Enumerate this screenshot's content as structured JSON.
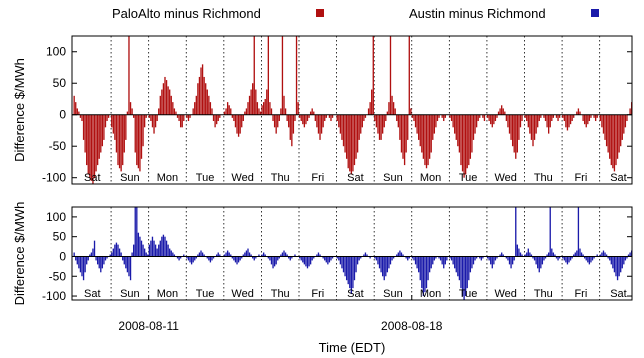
{
  "chart_data": [
    {
      "type": "bar",
      "panel": "top",
      "ylabel": "Difference $/MWh",
      "ylim": [
        -110,
        125
      ],
      "yticks": [
        -100,
        -50,
        0,
        50,
        100
      ],
      "grid": "vertical dotted lines at day boundaries",
      "day_labels": [
        "Sat",
        "Sun",
        "Mon",
        "Tue",
        "Wed",
        "Thu",
        "Fri",
        "Sat",
        "Sun",
        "Mon",
        "Tue",
        "Wed",
        "Thu",
        "Fri",
        "Sat"
      ],
      "series": [
        {
          "name": "PaloAlto minus Richmond",
          "color": "#b01010",
          "hours_per_point": 1,
          "profile_note": "hourly differences, days Sat..Sat",
          "daily_profiles": [
            [
              30,
              20,
              10,
              5,
              -5,
              -10,
              -40,
              -60,
              -80,
              -95,
              -100,
              -105,
              -110,
              -100,
              -90,
              -80,
              -70,
              -60,
              -50,
              -40,
              -20,
              -10,
              -5,
              0
            ],
            [
              -20,
              -30,
              -40,
              -60,
              -80,
              -85,
              -90,
              -80,
              -60,
              -40,
              5,
              125,
              20,
              10,
              -5,
              -60,
              -80,
              -85,
              -90,
              -70,
              -50,
              -20,
              -5,
              0
            ],
            [
              -5,
              -10,
              -20,
              -30,
              -20,
              -10,
              10,
              30,
              40,
              50,
              60,
              55,
              45,
              40,
              30,
              20,
              10,
              5,
              -5,
              -10,
              -20,
              -20,
              -10,
              0
            ],
            [
              -5,
              -10,
              -5,
              0,
              10,
              20,
              30,
              50,
              60,
              75,
              80,
              60,
              50,
              40,
              30,
              20,
              10,
              -10,
              -20,
              -15,
              -10,
              -5,
              0,
              0
            ],
            [
              5,
              10,
              20,
              15,
              10,
              -5,
              -10,
              -20,
              -30,
              -35,
              -30,
              -20,
              -10,
              5,
              10,
              20,
              30,
              40,
              50,
              125,
              40,
              20,
              10,
              5
            ],
            [
              15,
              20,
              25,
              40,
              125,
              20,
              10,
              -10,
              -20,
              -30,
              -20,
              -10,
              10,
              125,
              30,
              10,
              -10,
              -20,
              -40,
              -50,
              -30,
              -10,
              125,
              20
            ],
            [
              -5,
              -10,
              -15,
              -20,
              -15,
              -10,
              -5,
              5,
              10,
              5,
              -10,
              -20,
              -30,
              -40,
              -30,
              -20,
              -10,
              -5,
              0,
              -5,
              -10,
              -5,
              0,
              0
            ],
            [
              -10,
              -20,
              -30,
              -40,
              -50,
              -60,
              -70,
              -85,
              -90,
              -95,
              -90,
              -80,
              -70,
              -60,
              -40,
              -30,
              -20,
              -10,
              -5,
              0,
              10,
              20,
              40,
              125
            ],
            [
              -10,
              -20,
              -30,
              -40,
              -40,
              -30,
              -20,
              -10,
              5,
              20,
              125,
              30,
              20,
              10,
              -10,
              -20,
              -40,
              -60,
              -70,
              -80,
              -60,
              -40,
              125,
              10
            ],
            [
              -5,
              -10,
              -20,
              -30,
              -40,
              -50,
              -60,
              -70,
              -80,
              -85,
              -80,
              -70,
              -60,
              -40,
              -30,
              -20,
              -10,
              -5,
              0,
              -5,
              -10,
              -5,
              0,
              0
            ],
            [
              -5,
              -10,
              -20,
              -30,
              -40,
              -50,
              -60,
              -80,
              -90,
              -100,
              -95,
              -85,
              -80,
              -70,
              -60,
              -40,
              -30,
              -20,
              -10,
              -5,
              0,
              -5,
              -10,
              0
            ],
            [
              -5,
              -10,
              -15,
              -20,
              -15,
              -10,
              -5,
              5,
              10,
              15,
              10,
              5,
              -10,
              -20,
              -30,
              -40,
              -50,
              -60,
              -70,
              -60,
              -40,
              -20,
              -10,
              0
            ],
            [
              -5,
              -10,
              -20,
              -30,
              -40,
              -50,
              -40,
              -30,
              -20,
              -10,
              -5,
              0,
              -5,
              -10,
              -20,
              -30,
              -20,
              -10,
              -5,
              0,
              -5,
              -10,
              -5,
              0
            ],
            [
              -5,
              -10,
              -20,
              -25,
              -20,
              -15,
              -10,
              -5,
              0,
              5,
              10,
              5,
              0,
              -10,
              -15,
              -20,
              -15,
              -10,
              -5,
              0,
              -5,
              -10,
              -5,
              0
            ],
            [
              -10,
              -20,
              -30,
              -40,
              -50,
              -60,
              -70,
              -80,
              -85,
              -90,
              -80,
              -70,
              -60,
              -50,
              -40,
              -30,
              -20,
              -10,
              0,
              10,
              20,
              40,
              125,
              125
            ]
          ]
        }
      ]
    },
    {
      "type": "bar",
      "panel": "bottom",
      "ylabel": "Difference $/MWh",
      "xlabel": "Time (EDT)",
      "ylim": [
        -110,
        125
      ],
      "yticks": [
        -100,
        -50,
        0,
        50,
        100
      ],
      "xticks": [
        "2008-08-11",
        "2008-08-18"
      ],
      "grid": "vertical dotted lines at day boundaries",
      "day_labels": [
        "Sat",
        "Sun",
        "Mon",
        "Tue",
        "Wed",
        "Thu",
        "Fri",
        "Sat",
        "Sun",
        "Mon",
        "Tue",
        "Wed",
        "Thu",
        "Fri",
        "Sat"
      ],
      "series": [
        {
          "name": "Austin minus Richmond",
          "color": "#1a1aaa",
          "hours_per_point": 1,
          "daily_profiles": [
            [
              10,
              -10,
              -20,
              -30,
              -40,
              -50,
              -60,
              -40,
              -20,
              -10,
              5,
              10,
              20,
              40,
              -10,
              -20,
              -30,
              -40,
              -30,
              -20,
              -10,
              -5,
              0,
              5
            ],
            [
              10,
              20,
              30,
              35,
              30,
              20,
              10,
              -10,
              -20,
              -30,
              -40,
              -50,
              -60,
              10,
              30,
              125,
              125,
              60,
              50,
              40,
              30,
              20,
              10,
              5
            ],
            [
              30,
              40,
              50,
              40,
              30,
              20,
              30,
              40,
              50,
              55,
              50,
              40,
              30,
              20,
              15,
              10,
              5,
              0,
              -5,
              -10,
              -5,
              0,
              5,
              0
            ],
            [
              -5,
              -10,
              -15,
              -20,
              -15,
              -10,
              -5,
              5,
              10,
              15,
              10,
              5,
              0,
              -5,
              -10,
              -15,
              -10,
              -5,
              0,
              5,
              10,
              5,
              0,
              0
            ],
            [
              5,
              10,
              15,
              10,
              5,
              -5,
              -10,
              -15,
              -20,
              -15,
              -10,
              -5,
              5,
              10,
              15,
              20,
              10,
              5,
              -5,
              -10,
              -5,
              0,
              5,
              0
            ],
            [
              5,
              10,
              5,
              0,
              -5,
              -10,
              -20,
              -30,
              -25,
              -20,
              -10,
              -5,
              5,
              10,
              15,
              10,
              5,
              -5,
              -10,
              -5,
              0,
              5,
              0,
              0
            ],
            [
              -5,
              -10,
              -15,
              -20,
              -25,
              -30,
              -25,
              -20,
              -10,
              -5,
              0,
              5,
              10,
              5,
              0,
              -5,
              -10,
              -15,
              -20,
              -15,
              -10,
              -5,
              0,
              0
            ],
            [
              -5,
              -10,
              -20,
              -30,
              -40,
              -50,
              -60,
              -70,
              -80,
              -95,
              -80,
              -60,
              -40,
              -20,
              -10,
              -5,
              0,
              5,
              10,
              5,
              0,
              -5,
              0,
              0
            ],
            [
              -5,
              -10,
              -20,
              -30,
              -40,
              -50,
              -60,
              -50,
              -40,
              -30,
              -20,
              -10,
              -5,
              0,
              5,
              10,
              15,
              10,
              5,
              0,
              -5,
              -10,
              -5,
              0
            ],
            [
              -5,
              -10,
              -20,
              -30,
              -40,
              -60,
              -80,
              -100,
              -90,
              -80,
              -60,
              -40,
              -30,
              -20,
              -10,
              -5,
              0,
              -5,
              -10,
              -20,
              -30,
              -20,
              -10,
              0
            ],
            [
              -5,
              -10,
              -20,
              -30,
              -40,
              -50,
              -60,
              -80,
              -100,
              -110,
              -100,
              -80,
              -60,
              -40,
              -30,
              -20,
              -10,
              -5,
              0,
              -5,
              -10,
              -5,
              0,
              0
            ],
            [
              -5,
              -10,
              -20,
              -30,
              -20,
              -10,
              -5,
              0,
              5,
              10,
              5,
              0,
              -5,
              -10,
              -20,
              -30,
              -20,
              -10,
              125,
              30,
              20,
              10,
              5,
              0
            ],
            [
              5,
              10,
              20,
              10,
              5,
              -5,
              -10,
              -20,
              -30,
              -40,
              -30,
              -20,
              -10,
              -5,
              5,
              10,
              125,
              20,
              10,
              5,
              -5,
              -10,
              -5,
              0
            ],
            [
              -5,
              -10,
              -15,
              -20,
              -15,
              -10,
              -5,
              5,
              10,
              15,
              125,
              20,
              10,
              5,
              -5,
              -10,
              -15,
              -20,
              -15,
              -10,
              -5,
              0,
              5,
              0
            ],
            [
              5,
              10,
              15,
              10,
              5,
              -5,
              -10,
              -20,
              -30,
              -40,
              -50,
              -60,
              -50,
              -40,
              -30,
              -20,
              -10,
              -5,
              5,
              10,
              15,
              10,
              5,
              0
            ]
          ]
        }
      ]
    }
  ],
  "legend": {
    "placement": "top",
    "items": [
      {
        "label": "PaloAlto minus Richmond",
        "color": "#b01010"
      },
      {
        "label": "Austin minus Richmond",
        "color": "#1a1aaa"
      }
    ]
  }
}
